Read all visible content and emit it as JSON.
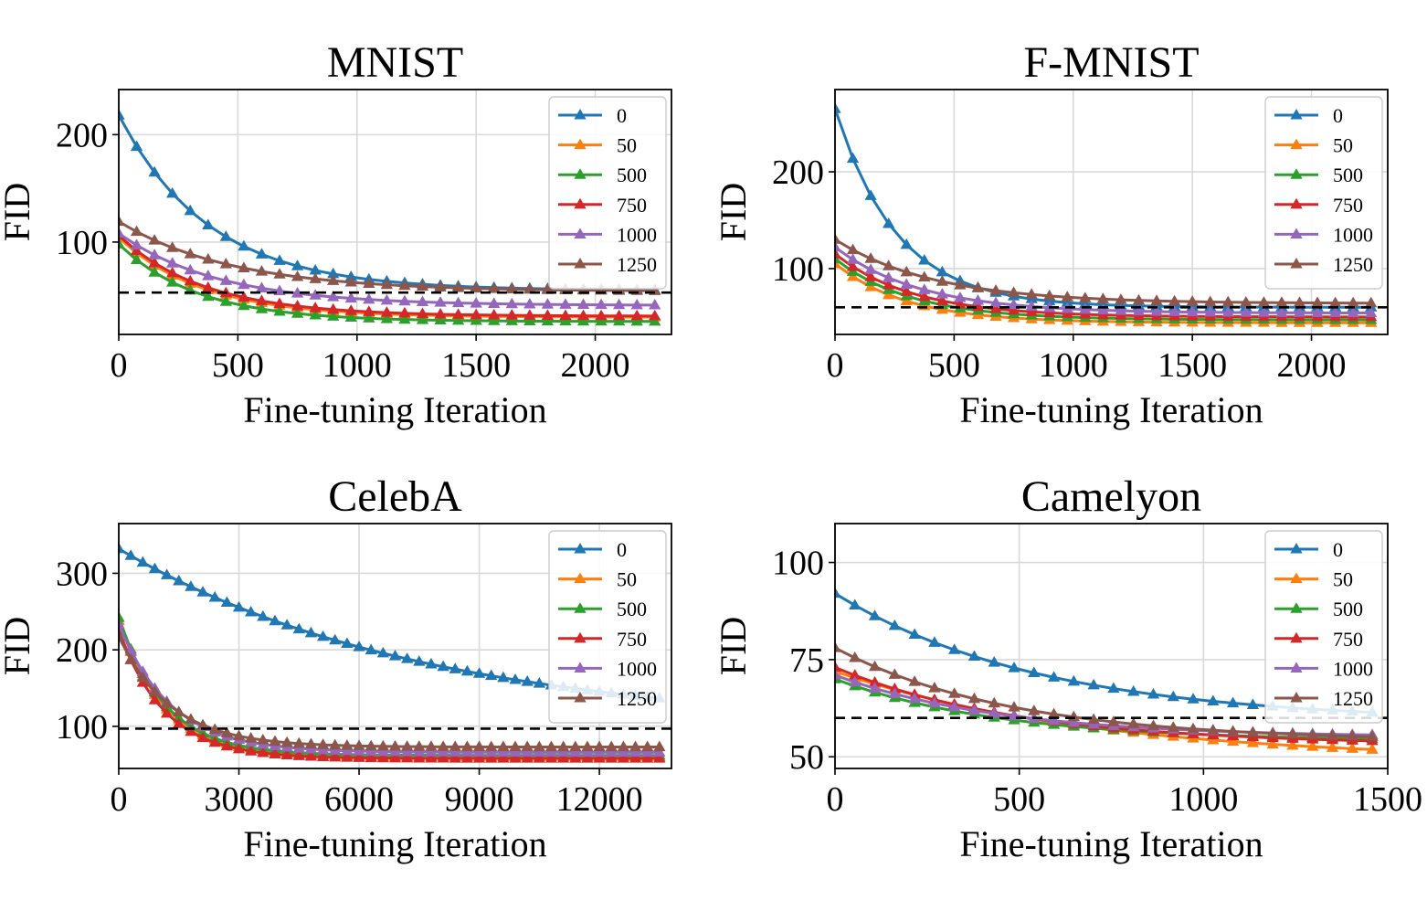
{
  "chart_data": [
    {
      "type": "line",
      "title": "MNIST",
      "xlabel": "Fine-tuning Iteration",
      "ylabel": "FID",
      "xlim": [
        0,
        2320
      ],
      "ylim": [
        14,
        242
      ],
      "xticks": [
        0,
        500,
        1000,
        1500,
        2000
      ],
      "yticks": [
        100,
        200
      ],
      "xtick_labels": [
        "0",
        "500",
        "1000",
        "1500",
        "2000"
      ],
      "ytick_labels": [
        "100",
        "200"
      ],
      "grid": true,
      "legend_position": "upper right",
      "baseline": 53,
      "x_start": 0,
      "x_step": 75,
      "n_points": 31,
      "series": [
        {
          "name": "0",
          "color": "#1f77b4",
          "start": 218,
          "end": 55,
          "tau": 380
        },
        {
          "name": "50",
          "color": "#ff7f0e",
          "start": 104,
          "end": 30,
          "tau": 350
        },
        {
          "name": "500",
          "color": "#2ca02c",
          "start": 98,
          "end": 26,
          "tau": 330
        },
        {
          "name": "750",
          "color": "#d62728",
          "start": 106,
          "end": 31,
          "tau": 360
        },
        {
          "name": "1000",
          "color": "#9467bd",
          "start": 108,
          "end": 41,
          "tau": 420
        },
        {
          "name": "1250",
          "color": "#8c564b",
          "start": 119,
          "end": 54,
          "tau": 480
        }
      ]
    },
    {
      "type": "line",
      "title": "F-MNIST",
      "xlabel": "Fine-tuning Iteration",
      "ylabel": "FID",
      "xlim": [
        0,
        2320
      ],
      "ylim": [
        32,
        285
      ],
      "xticks": [
        0,
        500,
        1000,
        1500,
        2000
      ],
      "yticks": [
        100,
        200
      ],
      "xtick_labels": [
        "0",
        "500",
        "1000",
        "1500",
        "2000"
      ],
      "ytick_labels": [
        "100",
        "200"
      ],
      "grid": true,
      "legend_position": "upper right",
      "baseline": 60,
      "x_start": 0,
      "x_step": 75,
      "n_points": 31,
      "series": [
        {
          "name": "0",
          "color": "#1f77b4",
          "start": 265,
          "end": 60,
          "tau": 260
        },
        {
          "name": "50",
          "color": "#ff7f0e",
          "start": 105,
          "end": 44,
          "tau": 300
        },
        {
          "name": "500",
          "color": "#2ca02c",
          "start": 110,
          "end": 47,
          "tau": 320
        },
        {
          "name": "750",
          "color": "#d62728",
          "start": 115,
          "end": 50,
          "tau": 330
        },
        {
          "name": "1000",
          "color": "#9467bd",
          "start": 122,
          "end": 54,
          "tau": 360
        },
        {
          "name": "1250",
          "color": "#8c564b",
          "start": 130,
          "end": 64,
          "tau": 420
        }
      ]
    },
    {
      "type": "line",
      "title": "CelebA",
      "xlabel": "Fine-tuning Iteration",
      "ylabel": "FID",
      "xlim": [
        0,
        13800
      ],
      "ylim": [
        45,
        365
      ],
      "xticks": [
        0,
        3000,
        6000,
        9000,
        12000
      ],
      "yticks": [
        100,
        200,
        300
      ],
      "xtick_labels": [
        "0",
        "3000",
        "6000",
        "9000",
        "12000"
      ],
      "ytick_labels": [
        "100",
        "200",
        "300"
      ],
      "grid": true,
      "legend_position": "upper right",
      "baseline": 97,
      "x_start": 0,
      "x_step": 300,
      "n_points": 46,
      "series": [
        {
          "name": "0",
          "color": "#1f77b4",
          "start": 332,
          "end": 97,
          "tau": 7600
        },
        {
          "name": "50",
          "color": "#ff7f0e",
          "start": 238,
          "end": 60,
          "tau": 1150
        },
        {
          "name": "500",
          "color": "#2ca02c",
          "start": 242,
          "end": 62,
          "tau": 1150
        },
        {
          "name": "750",
          "color": "#d62728",
          "start": 225,
          "end": 58,
          "tau": 1150
        },
        {
          "name": "1000",
          "color": "#9467bd",
          "start": 233,
          "end": 66,
          "tau": 1300
        },
        {
          "name": "1250",
          "color": "#8c564b",
          "start": 217,
          "end": 73,
          "tau": 1300
        }
      ]
    },
    {
      "type": "line",
      "title": "Camelyon",
      "xlabel": "Fine-tuning Iteration",
      "ylabel": "FID",
      "xlim": [
        0,
        1500
      ],
      "ylim": [
        47,
        110
      ],
      "xticks": [
        0,
        500,
        1000,
        1500
      ],
      "yticks": [
        50,
        75,
        100
      ],
      "xtick_labels": [
        "0",
        "500",
        "1000",
        "1500"
      ],
      "ytick_labels": [
        "50",
        "75",
        "100"
      ],
      "grid": true,
      "legend_position": "upper right",
      "baseline": 60,
      "x_start": 0,
      "x_step": 54,
      "n_points": 28,
      "series": [
        {
          "name": "0",
          "color": "#1f77b4",
          "start": 92,
          "end": 59,
          "tau": 560
        },
        {
          "name": "50",
          "color": "#ff7f0e",
          "start": 72,
          "end": 49,
          "tau": 700
        },
        {
          "name": "500",
          "color": "#2ca02c",
          "start": 70,
          "end": 54,
          "tau": 450
        },
        {
          "name": "750",
          "color": "#d62728",
          "start": 73,
          "end": 53,
          "tau": 500
        },
        {
          "name": "1000",
          "color": "#9467bd",
          "start": 71,
          "end": 55,
          "tau": 450
        },
        {
          "name": "1250",
          "color": "#8c564b",
          "start": 78,
          "end": 54,
          "tau": 480
        }
      ]
    }
  ]
}
